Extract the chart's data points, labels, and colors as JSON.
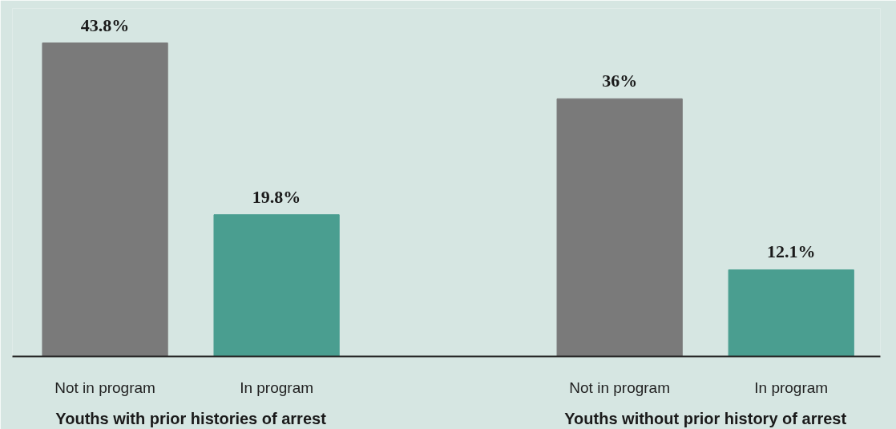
{
  "chart_data": {
    "type": "bar",
    "categories": [
      "Not in program",
      "In program",
      "Not in program",
      "In program"
    ],
    "values": [
      43.8,
      19.8,
      36,
      12.1
    ],
    "colors": [
      "#7a7a7a",
      "#4a9e90",
      "#7a7a7a",
      "#4a9e90"
    ],
    "value_labels": [
      "43.8%",
      "19.8%",
      "36%",
      "12.1%"
    ],
    "annotations": [
      "Youths with prior histories of arrest",
      "Youths without prior history of arrest"
    ]
  }
}
